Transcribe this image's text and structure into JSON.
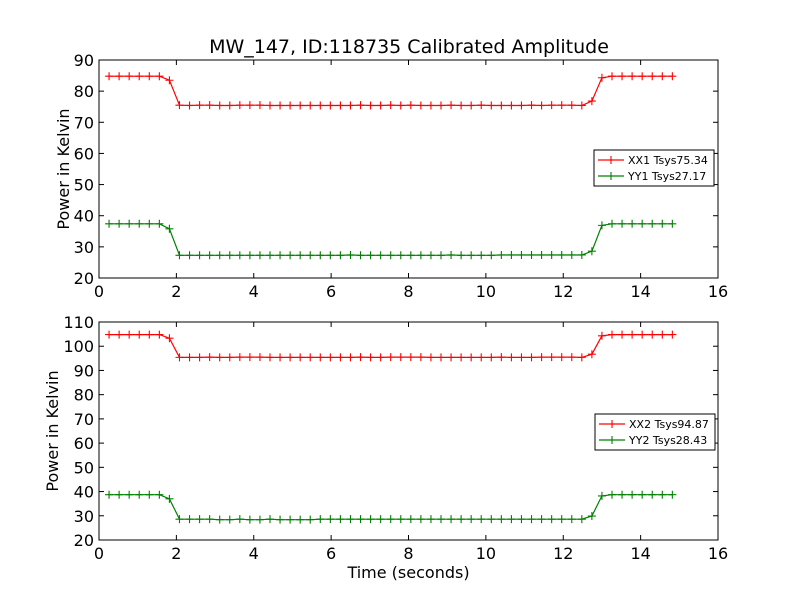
{
  "figure_title": "MW_147, ID:118735 Calibrated Amplitude",
  "chart_data": [
    {
      "type": "line",
      "title": "MW_147, ID:118735 Calibrated Amplitude",
      "xlabel": "",
      "ylabel": "Power in Kelvin",
      "xlim": [
        0,
        16
      ],
      "ylim": [
        20,
        90
      ],
      "xticks": [
        0,
        2,
        4,
        6,
        8,
        10,
        12,
        14,
        16
      ],
      "yticks": [
        20,
        30,
        40,
        50,
        60,
        70,
        80,
        90
      ],
      "grid": false,
      "legend_position": "center-right",
      "marker": "+",
      "series": [
        {
          "name": "XX1 Tsys75.34",
          "color": "#ff0000",
          "x": [
            0.26,
            0.52,
            0.78,
            1.04,
            1.3,
            1.56,
            1.82,
            2.08,
            2.34,
            2.6,
            2.86,
            3.12,
            3.38,
            3.64,
            3.9,
            4.16,
            4.42,
            4.68,
            4.94,
            5.2,
            5.46,
            5.72,
            5.98,
            6.24,
            6.5,
            6.76,
            7.02,
            7.28,
            7.54,
            7.8,
            8.06,
            8.32,
            8.58,
            8.84,
            9.1,
            9.36,
            9.62,
            9.88,
            10.14,
            10.4,
            10.66,
            10.92,
            11.18,
            11.44,
            11.7,
            11.96,
            12.22,
            12.48,
            12.74,
            13.0,
            13.26,
            13.52,
            13.78,
            14.04,
            14.3,
            14.56,
            14.82
          ],
          "y": [
            84.8,
            84.8,
            84.8,
            84.8,
            84.8,
            84.8,
            83.5,
            75.5,
            75.4,
            75.5,
            75.5,
            75.4,
            75.4,
            75.5,
            75.5,
            75.5,
            75.4,
            75.4,
            75.4,
            75.4,
            75.4,
            75.4,
            75.4,
            75.4,
            75.4,
            75.5,
            75.4,
            75.4,
            75.5,
            75.4,
            75.5,
            75.4,
            75.4,
            75.4,
            75.5,
            75.4,
            75.4,
            75.5,
            75.4,
            75.4,
            75.4,
            75.4,
            75.5,
            75.4,
            75.5,
            75.5,
            75.5,
            75.4,
            76.8,
            84.3,
            84.8,
            84.8,
            84.8,
            84.8,
            84.8,
            84.8,
            84.8
          ]
        },
        {
          "name": "YY1 Tsys27.17",
          "color": "#008000",
          "x": [
            0.26,
            0.52,
            0.78,
            1.04,
            1.3,
            1.56,
            1.82,
            2.08,
            2.34,
            2.6,
            2.86,
            3.12,
            3.38,
            3.64,
            3.9,
            4.16,
            4.42,
            4.68,
            4.94,
            5.2,
            5.46,
            5.72,
            5.98,
            6.24,
            6.5,
            6.76,
            7.02,
            7.28,
            7.54,
            7.8,
            8.06,
            8.32,
            8.58,
            8.84,
            9.1,
            9.36,
            9.62,
            9.88,
            10.14,
            10.4,
            10.66,
            10.92,
            11.18,
            11.44,
            11.7,
            11.96,
            12.22,
            12.48,
            12.74,
            13.0,
            13.26,
            13.52,
            13.78,
            14.04,
            14.3,
            14.56,
            14.82
          ],
          "y": [
            37.4,
            37.4,
            37.4,
            37.4,
            37.4,
            37.4,
            35.8,
            27.3,
            27.3,
            27.3,
            27.3,
            27.3,
            27.3,
            27.3,
            27.3,
            27.3,
            27.3,
            27.3,
            27.3,
            27.3,
            27.3,
            27.3,
            27.3,
            27.3,
            27.4,
            27.3,
            27.3,
            27.3,
            27.3,
            27.3,
            27.3,
            27.3,
            27.3,
            27.3,
            27.4,
            27.3,
            27.3,
            27.3,
            27.3,
            27.4,
            27.4,
            27.4,
            27.4,
            27.4,
            27.4,
            27.4,
            27.4,
            27.4,
            28.6,
            36.9,
            37.4,
            37.4,
            37.4,
            37.4,
            37.4,
            37.4,
            37.4
          ]
        }
      ]
    },
    {
      "type": "line",
      "title": "",
      "xlabel": "Time (seconds)",
      "ylabel": "Power in Kelvin",
      "xlim": [
        0,
        16
      ],
      "ylim": [
        20,
        110
      ],
      "xticks": [
        0,
        2,
        4,
        6,
        8,
        10,
        12,
        14,
        16
      ],
      "yticks": [
        20,
        30,
        40,
        50,
        60,
        70,
        80,
        90,
        100,
        110
      ],
      "grid": false,
      "legend_position": "center-right",
      "marker": "+",
      "series": [
        {
          "name": "XX2 Tsys94.87",
          "color": "#ff0000",
          "x": [
            0.26,
            0.52,
            0.78,
            1.04,
            1.3,
            1.56,
            1.82,
            2.08,
            2.34,
            2.6,
            2.86,
            3.12,
            3.38,
            3.64,
            3.9,
            4.16,
            4.42,
            4.68,
            4.94,
            5.2,
            5.46,
            5.72,
            5.98,
            6.24,
            6.5,
            6.76,
            7.02,
            7.28,
            7.54,
            7.8,
            8.06,
            8.32,
            8.58,
            8.84,
            9.1,
            9.36,
            9.62,
            9.88,
            10.14,
            10.4,
            10.66,
            10.92,
            11.18,
            11.44,
            11.7,
            11.96,
            12.22,
            12.48,
            12.74,
            13.0,
            13.26,
            13.52,
            13.78,
            14.04,
            14.3,
            14.56,
            14.82
          ],
          "y": [
            104.8,
            104.8,
            104.8,
            104.8,
            104.8,
            104.8,
            103.3,
            95.4,
            95.4,
            95.4,
            95.5,
            95.4,
            95.4,
            95.5,
            95.5,
            95.5,
            95.4,
            95.4,
            95.4,
            95.4,
            95.4,
            95.4,
            95.4,
            95.4,
            95.4,
            95.5,
            95.4,
            95.4,
            95.5,
            95.5,
            95.5,
            95.5,
            95.4,
            95.4,
            95.4,
            95.4,
            95.4,
            95.4,
            95.4,
            95.5,
            95.4,
            95.4,
            95.4,
            95.5,
            95.5,
            95.5,
            95.5,
            95.4,
            96.7,
            104.3,
            104.8,
            104.8,
            104.8,
            104.8,
            104.8,
            104.8,
            104.8
          ]
        },
        {
          "name": "YY2 Tsys28.43",
          "color": "#008000",
          "x": [
            0.26,
            0.52,
            0.78,
            1.04,
            1.3,
            1.56,
            1.82,
            2.08,
            2.34,
            2.6,
            2.86,
            3.12,
            3.38,
            3.64,
            3.9,
            4.16,
            4.42,
            4.68,
            4.94,
            5.2,
            5.46,
            5.72,
            5.98,
            6.24,
            6.5,
            6.76,
            7.02,
            7.28,
            7.54,
            7.8,
            8.06,
            8.32,
            8.58,
            8.84,
            9.1,
            9.36,
            9.62,
            9.88,
            10.14,
            10.4,
            10.66,
            10.92,
            11.18,
            11.44,
            11.7,
            11.96,
            12.22,
            12.48,
            12.74,
            13.0,
            13.26,
            13.52,
            13.78,
            14.04,
            14.3,
            14.56,
            14.82
          ],
          "y": [
            38.7,
            38.7,
            38.7,
            38.7,
            38.7,
            38.7,
            37.0,
            28.6,
            28.6,
            28.6,
            28.6,
            28.4,
            28.4,
            28.6,
            28.4,
            28.4,
            28.6,
            28.4,
            28.4,
            28.4,
            28.4,
            28.6,
            28.6,
            28.6,
            28.6,
            28.6,
            28.6,
            28.6,
            28.6,
            28.6,
            28.6,
            28.6,
            28.6,
            28.6,
            28.6,
            28.6,
            28.6,
            28.6,
            28.6,
            28.6,
            28.6,
            28.6,
            28.6,
            28.6,
            28.6,
            28.6,
            28.6,
            28.6,
            29.9,
            38.2,
            38.7,
            38.7,
            38.7,
            38.7,
            38.7,
            38.7,
            38.7
          ]
        }
      ]
    }
  ]
}
